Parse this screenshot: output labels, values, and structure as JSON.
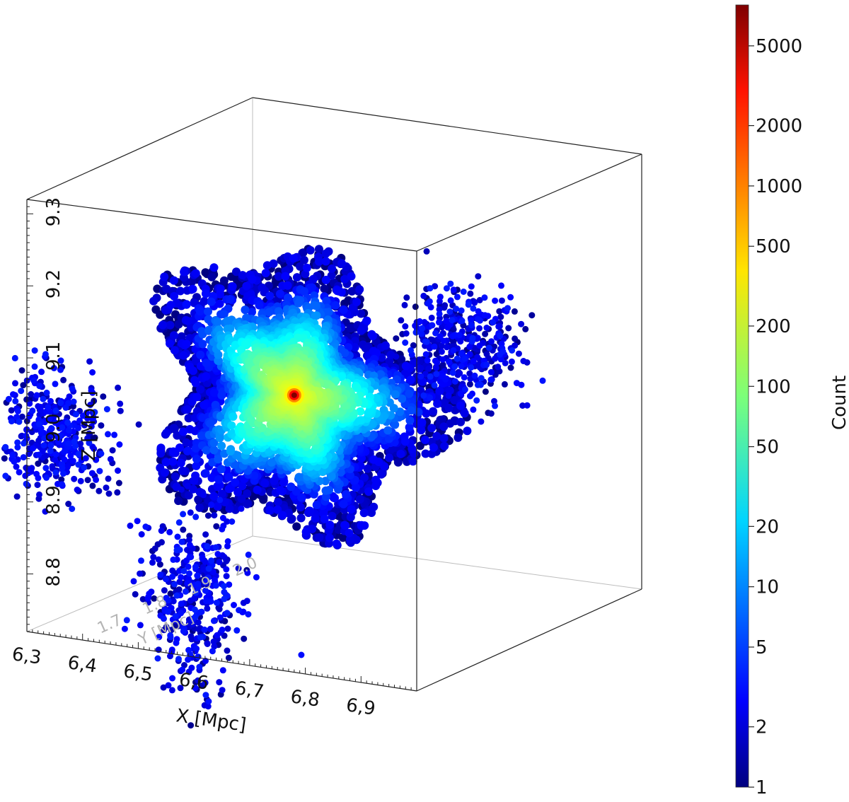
{
  "chart_data": {
    "type": "scatter",
    "title": "",
    "description_kind": "3D scatter of particles coloured by count (log color scale)",
    "x_axis": {
      "label": "X [Mpc]",
      "ticks": [
        "6.3",
        "6.4",
        "6.5",
        "6.6",
        "6.7",
        "6.8",
        "6.9"
      ],
      "range": [
        6.3,
        7.0
      ]
    },
    "y_axis": {
      "label": "Y [Mpc]",
      "ticks": [
        "1.7",
        "1.8",
        "1.9",
        "2.0"
      ],
      "range": [
        1.6,
        2.1
      ]
    },
    "z_axis": {
      "label": "Z [Mpc]",
      "ticks": [
        "8.8",
        "8.9",
        "9.0",
        "9.1",
        "9.2",
        "9.3"
      ],
      "range": [
        8.72,
        9.32
      ]
    },
    "colorbar": {
      "label": "Count",
      "scale": "log",
      "range": [
        1,
        8000
      ],
      "ticks": [
        "1",
        "2",
        "5",
        "10",
        "20",
        "50",
        "100",
        "200",
        "500",
        "1000",
        "2000",
        "5000"
      ],
      "colormap": "jet"
    },
    "structure": {
      "center": {
        "x": 6.78,
        "z": 9.1
      },
      "peak_count": 8000,
      "main_halo_extent": {
        "x": [
          6.55,
          7.0
        ],
        "z": [
          8.85,
          9.27
        ]
      },
      "clumps": [
        {
          "x": 6.35,
          "z": 9.0,
          "note": "left sub-clump"
        },
        {
          "x": 6.6,
          "z": 8.8,
          "note": "lower filament"
        },
        {
          "x": 7.08,
          "z": 9.2,
          "note": "right sub-clump"
        }
      ]
    }
  }
}
